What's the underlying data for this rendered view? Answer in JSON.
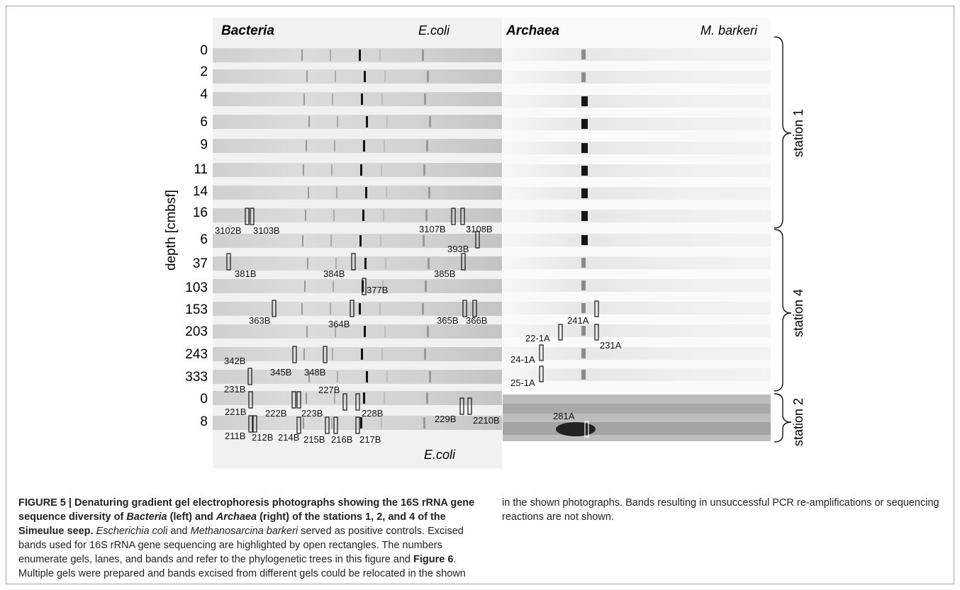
{
  "figure": {
    "bacteria_header": "Bacteria",
    "bacteria_control_top": "E.coli",
    "bacteria_control_bottom": "E.coli",
    "archaea_header": "Archaea",
    "archaea_control": "M. barkeri",
    "y_axis_label": "depth [cmbsf]",
    "depths": [
      "0",
      "2",
      "4",
      "6",
      "9",
      "11",
      "14",
      "16",
      "6",
      "37",
      "103",
      "153",
      "203",
      "243",
      "333",
      "0",
      "8"
    ],
    "stations": [
      "station 1",
      "station 4",
      "station 2"
    ],
    "bacteria_band_labels": [
      "3102B",
      "3103B",
      "3107B",
      "3108B",
      "393B",
      "381B",
      "384B",
      "385B",
      "377B",
      "363B",
      "364B",
      "365B",
      "366B",
      "342B",
      "345B",
      "348B",
      "231B",
      "227B",
      "221B",
      "222B",
      "223B",
      "228B",
      "229B",
      "2210B",
      "211B",
      "212B",
      "214B",
      "215B",
      "216B",
      "217B"
    ],
    "archaea_band_labels": [
      "241A",
      "22-1A",
      "231A",
      "24-1A",
      "25-1A",
      "281A"
    ]
  },
  "caption": {
    "figure_label": "FIGURE 5 | ",
    "title_part1": "Denaturing gradient gel electrophoresis photographs showing the 16S rRNA gene sequence diversity of ",
    "title_bacteria": "Bacteria",
    "title_part2": " (left) and ",
    "title_archaea": "Archaea",
    "title_part3": " (right) of the stations 1, 2, and 4 of the Simeulue seep.",
    "ecoli": "Escherichia coli",
    "and": " and ",
    "mbarkeri": "Methanosarcina barkeri",
    "controls_text": " served as positive controls. Excised bands used for 16S rRNA gene sequencing are highlighted by open rectangles. The numbers enumerate gels, lanes, and bands and refer to the phylogenetic trees in this figure and ",
    "figure6": "Figure 6",
    "rest_text": ". Multiple gels were prepared and bands excised from different gels could be relocated in the shown photographs. Bands resulting in unsuccessful PCR re-amplifications or sequencing reactions are not shown."
  }
}
